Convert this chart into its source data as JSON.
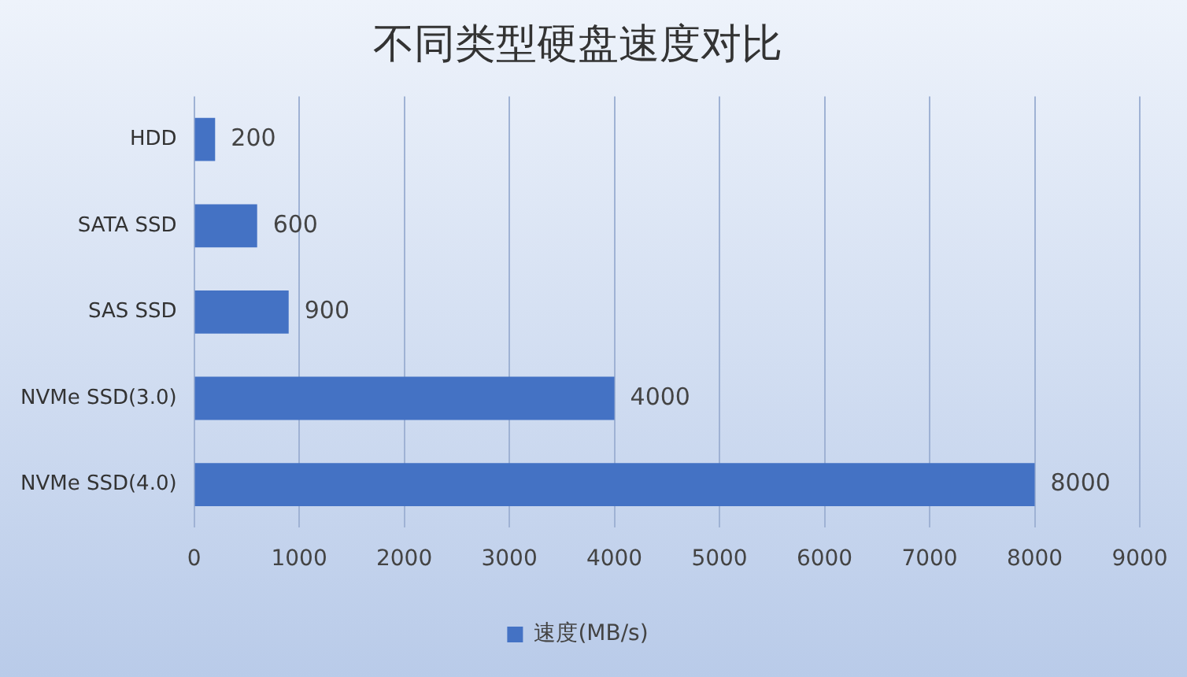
{
  "chart_data": {
    "type": "bar",
    "title": "不同类型硬盘速度对比",
    "orientation": "horizontal",
    "categories": [
      "HDD",
      "SATA SSD",
      "SAS SSD",
      "NVMe SSD(3.0)",
      "NVMe SSD(4.0)"
    ],
    "series": [
      {
        "name": "速度(MB/s)",
        "color": "#4472c4",
        "values": [
          200,
          600,
          900,
          4000,
          8000
        ]
      }
    ],
    "xlim": [
      0,
      9000
    ],
    "xticks": [
      0,
      1000,
      2000,
      3000,
      4000,
      5000,
      6000,
      7000,
      8000,
      9000
    ],
    "grid": "x",
    "legend": "bottom",
    "data_labels": true
  }
}
